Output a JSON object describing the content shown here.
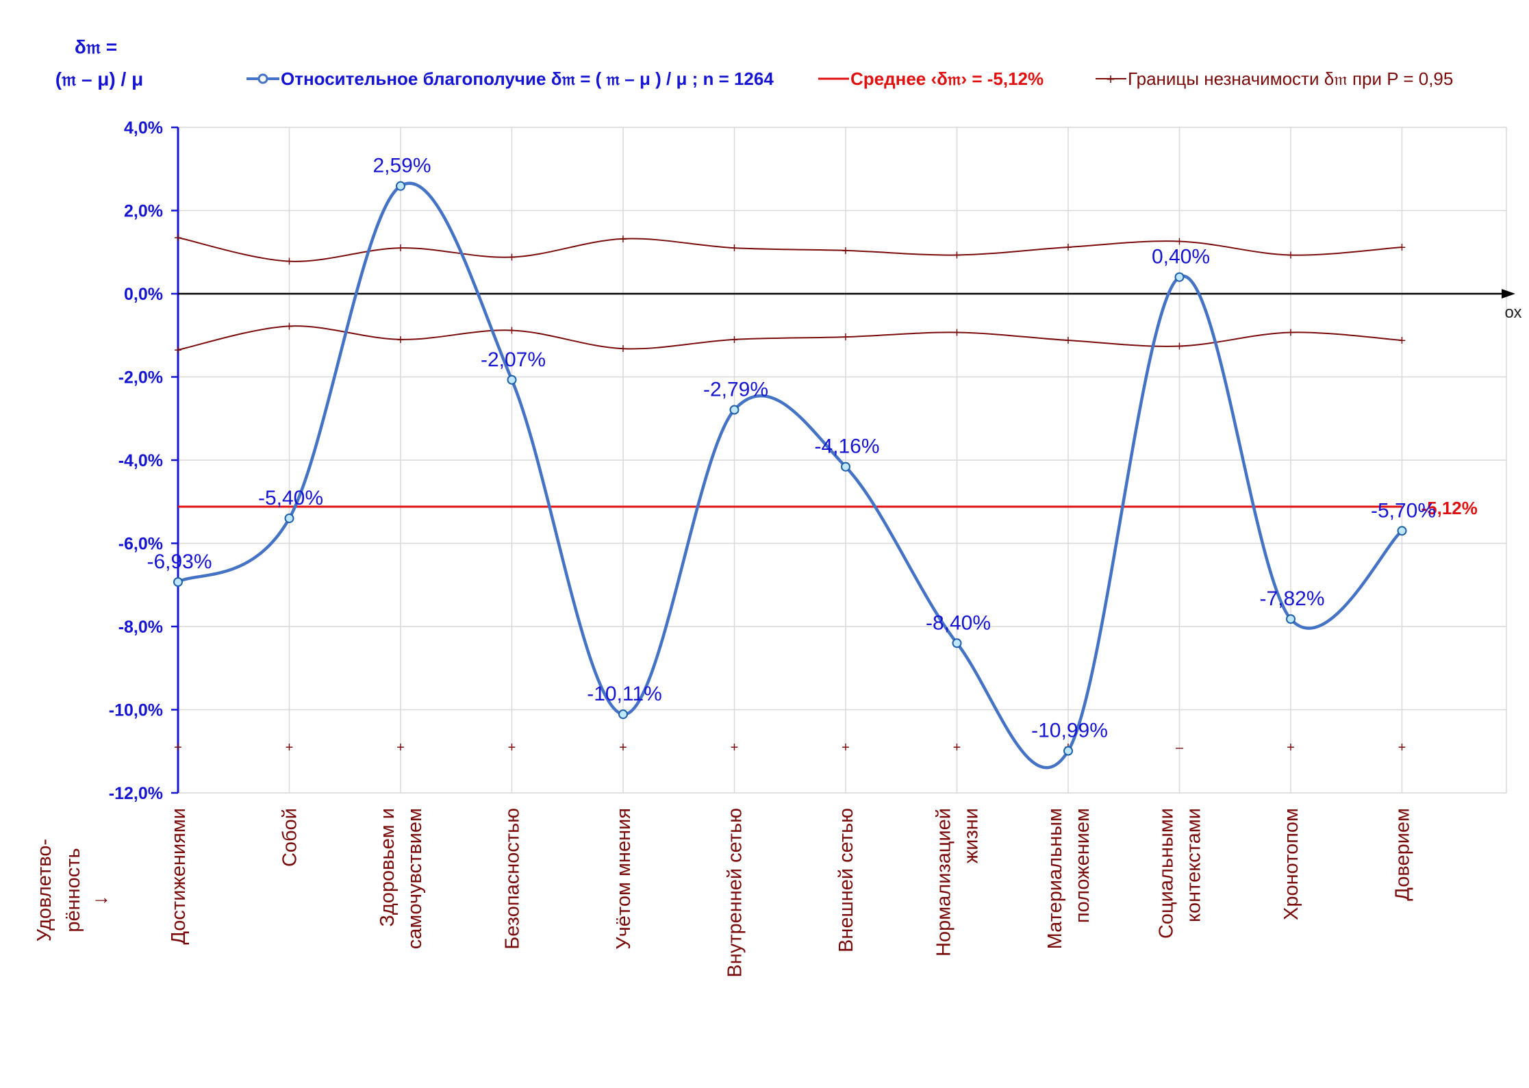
{
  "chart_data": {
    "type": "line",
    "y_axis_title_line1": "δ𝔪 =",
    "y_axis_title_line2": "(𝔪 – μ) / μ",
    "x_axis_title_lines": [
      "Удовлетво-",
      "рённость",
      "→"
    ],
    "x_axis_end_label": "ох",
    "ylim": [
      -12,
      4
    ],
    "y_ticks": [
      4,
      2,
      0,
      -2,
      -4,
      -6,
      -8,
      -10,
      -12
    ],
    "y_tick_labels": [
      "4,0%",
      "2,0%",
      "0,0%",
      "-2,0%",
      "-4,0%",
      "-6,0%",
      "-8,0%",
      "-10,0%",
      "-12,0%"
    ],
    "grid": true,
    "legend_position": "top",
    "categories": [
      [
        "Достижениями"
      ],
      [
        "Собой"
      ],
      [
        "Здоровьем и",
        "самочувствием"
      ],
      [
        "Безопасностью"
      ],
      [
        "Учётом мнения"
      ],
      [
        "Внутренней сетью"
      ],
      [
        "Внешней сетью"
      ],
      [
        "Нормализацией",
        "жизни"
      ],
      [
        "Материальным",
        "положением"
      ],
      [
        "Социальными",
        "контекстами"
      ],
      [
        "Хронотопом"
      ],
      [
        "Доверием"
      ]
    ],
    "series": [
      {
        "name": "Относительное благополучие δ𝔪 = ( 𝔪 – μ ) / μ ; n = 1264",
        "color": "#4472c4",
        "values": [
          -6.93,
          -5.4,
          2.59,
          -2.07,
          -10.11,
          -2.79,
          -4.16,
          -8.4,
          -10.99,
          0.4,
          -7.82,
          -5.7
        ],
        "data_labels": [
          "-6,93%",
          "-5,40%",
          "2,59%",
          "-2,07%",
          "-10,11%",
          "-2,79%",
          "-4,16%",
          "-8,40%",
          "-10,99%",
          "0,40%",
          "-7,82%",
          "-5,70%"
        ]
      },
      {
        "name": "Среднее ‹δ𝔪› = -5,12%",
        "color": "#e01010",
        "value": -5.12,
        "end_label": "-5,12%"
      },
      {
        "name": "Границы незначимости δ𝔪 при P = 0,95",
        "color": "#7a0a0a",
        "upper": [
          1.35,
          0.78,
          1.1,
          0.88,
          1.32,
          1.1,
          1.04,
          0.93,
          1.12,
          1.26,
          0.93,
          1.12
        ],
        "lower": [
          -1.35,
          -0.78,
          -1.1,
          -0.88,
          -1.32,
          -1.1,
          -1.04,
          -0.93,
          -1.12,
          -1.26,
          -0.93,
          -1.12
        ],
        "bottom_marker_value": -10.9
      }
    ]
  }
}
